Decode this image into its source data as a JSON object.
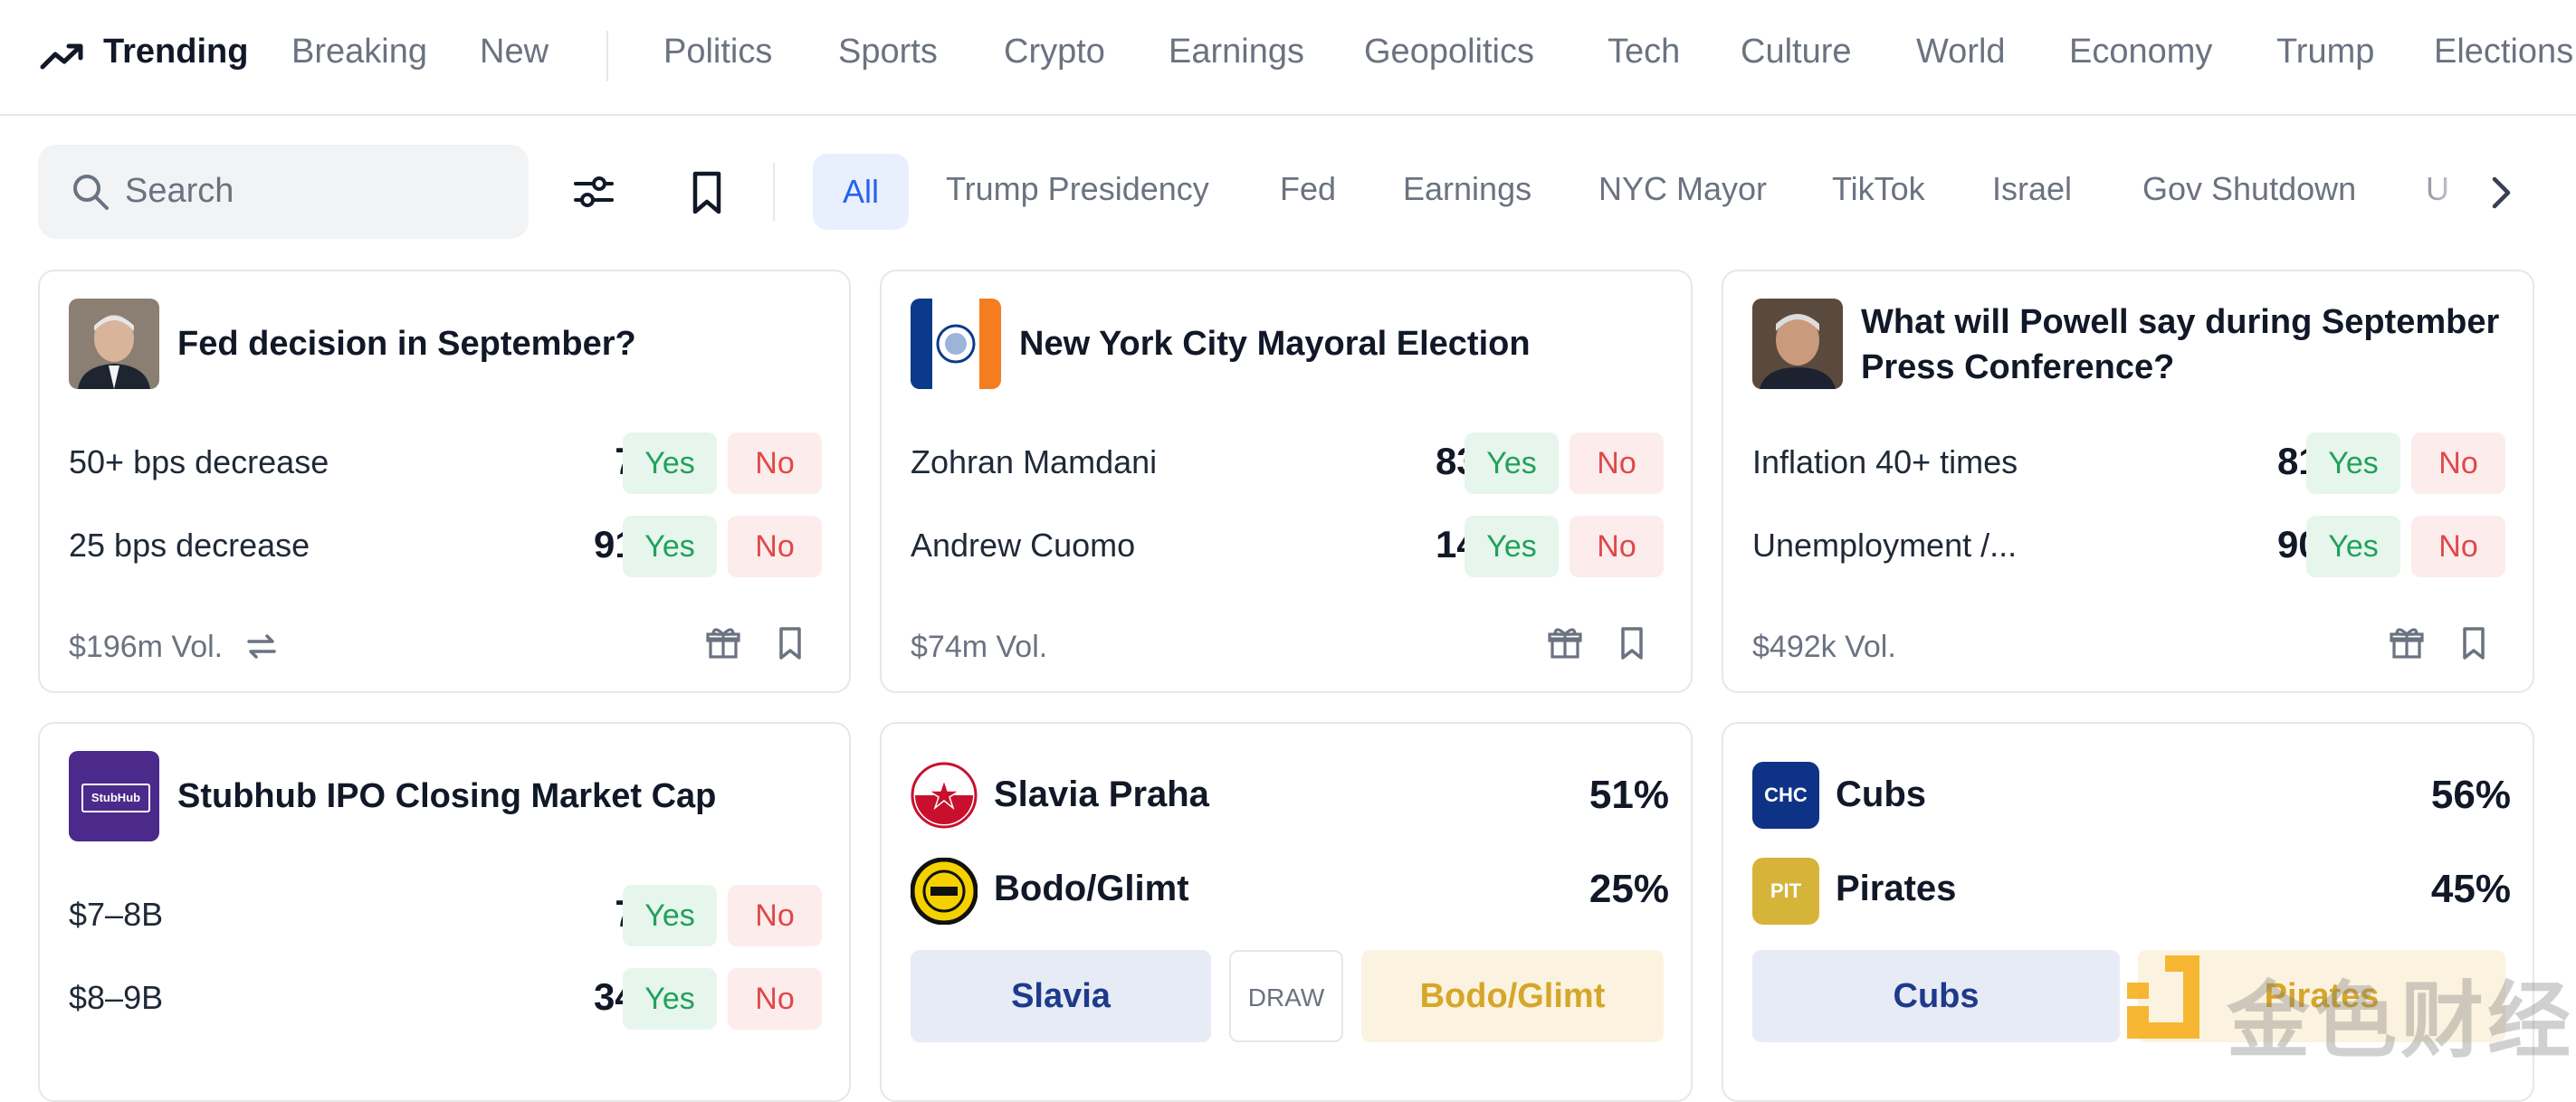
{
  "nav": {
    "trending": "Trending",
    "breaking": "Breaking",
    "new": "New",
    "categories": [
      "Politics",
      "Sports",
      "Crypto",
      "Earnings",
      "Geopolitics",
      "Tech",
      "Culture",
      "World",
      "Economy",
      "Trump",
      "Elections"
    ]
  },
  "search": {
    "placeholder": "Search"
  },
  "filters": {
    "all": "All",
    "chips": [
      "Trump Presidency",
      "Fed",
      "Earnings",
      "NYC Mayor",
      "TikTok",
      "Israel",
      "Gov Shutdown",
      "U"
    ]
  },
  "buttons": {
    "yes": "Yes",
    "no": "No"
  },
  "cards": {
    "fed": {
      "title": "Fed decision in September?",
      "outcomes": [
        {
          "label": "50+ bps decrease",
          "pct": "7%"
        },
        {
          "label": "25 bps decrease",
          "pct": "91%"
        }
      ],
      "volume": "$196m Vol."
    },
    "nyc": {
      "title": "New York City Mayoral Election",
      "outcomes": [
        {
          "label": "Zohran Mamdani",
          "pct": "83%"
        },
        {
          "label": "Andrew Cuomo",
          "pct": "14%"
        }
      ],
      "volume": "$74m Vol."
    },
    "powell": {
      "title_line1": "What will Powell say during September",
      "title_line2": "Press Conference?",
      "outcomes": [
        {
          "label": "Inflation 40+ times",
          "pct": "81%"
        },
        {
          "label": "Unemployment /...",
          "pct": "90%"
        }
      ],
      "volume": "$492k Vol."
    },
    "stubhub": {
      "title": "Stubhub IPO Closing Market Cap",
      "logo_text": "StubHub",
      "outcomes": [
        {
          "label": "$7–8B",
          "pct": "7%"
        },
        {
          "label": "$8–9B",
          "pct": "34%"
        }
      ]
    },
    "slavia": {
      "team1": "Slavia Praha",
      "pct1": "51%",
      "team2": "Bodo/Glimt",
      "pct2": "25%",
      "btn1": "Slavia",
      "draw": "DRAW",
      "btn2": "Bodo/Glimt"
    },
    "cubs": {
      "team1": "Cubs",
      "abbr1": "CHC",
      "pct1": "56%",
      "team2": "Pirates",
      "abbr2": "PIT",
      "pct2": "45%",
      "btn1": "Cubs",
      "btn2": "Pirates"
    }
  },
  "watermark": "金色财经",
  "colors": {
    "accent": "#2563eb",
    "yes_bg": "#e6f6ec",
    "yes_text": "#22a05b",
    "no_bg": "#fdecec",
    "no_text": "#e04848",
    "cubs_blue": "#0e3386",
    "pirates_gold": "#d6b43a"
  }
}
